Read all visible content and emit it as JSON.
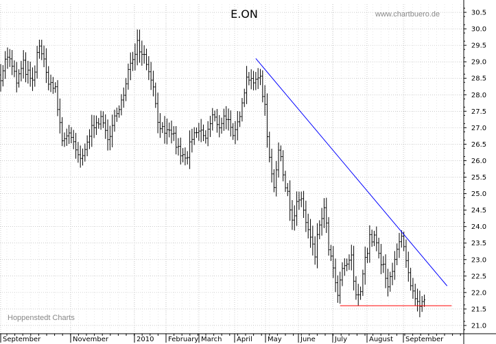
{
  "chart_data": {
    "type": "ohlc-bar",
    "title": "E.ON",
    "watermark": "www.chartbuero.de",
    "source": "Hoppenstedt Charts",
    "ylim": [
      20.75,
      30.75
    ],
    "y_ticks": [
      "30.5",
      "30.0",
      "29.5",
      "29.0",
      "28.5",
      "28.0",
      "27.5",
      "27.0",
      "26.5",
      "26.0",
      "25.5",
      "25.0",
      "24.5",
      "24.0",
      "23.5",
      "23.0",
      "22.5",
      "22.0",
      "21.5",
      "21.0"
    ],
    "x_labels": [
      "September",
      "November",
      "2010",
      "February",
      "March",
      "April",
      "May",
      "June",
      "July",
      "August",
      "September"
    ],
    "grid": true,
    "colors": {
      "price": "#000000",
      "trendline": "#0000ff",
      "support": "#ff0000",
      "grid": "#aaaaaa"
    },
    "anchors": [
      {
        "d": 0,
        "v": 28.6
      },
      {
        "d": 3,
        "v": 29.2
      },
      {
        "d": 7,
        "v": 28.4
      },
      {
        "d": 10,
        "v": 28.9
      },
      {
        "d": 14,
        "v": 28.3
      },
      {
        "d": 17,
        "v": 29.6
      },
      {
        "d": 20,
        "v": 28.6
      },
      {
        "d": 24,
        "v": 28.1
      },
      {
        "d": 27,
        "v": 26.6
      },
      {
        "d": 30,
        "v": 26.9
      },
      {
        "d": 33,
        "v": 26.2
      },
      {
        "d": 36,
        "v": 26.0
      },
      {
        "d": 39,
        "v": 26.8
      },
      {
        "d": 42,
        "v": 27.3
      },
      {
        "d": 45,
        "v": 27.1
      },
      {
        "d": 48,
        "v": 26.6
      },
      {
        "d": 51,
        "v": 27.6
      },
      {
        "d": 54,
        "v": 27.9
      },
      {
        "d": 57,
        "v": 29.0
      },
      {
        "d": 60,
        "v": 29.6
      },
      {
        "d": 63,
        "v": 29.2
      },
      {
        "d": 66,
        "v": 28.6
      },
      {
        "d": 69,
        "v": 27.3
      },
      {
        "d": 72,
        "v": 26.7
      },
      {
        "d": 75,
        "v": 26.9
      },
      {
        "d": 78,
        "v": 26.3
      },
      {
        "d": 81,
        "v": 26.0
      },
      {
        "d": 84,
        "v": 26.6
      },
      {
        "d": 87,
        "v": 26.9
      },
      {
        "d": 90,
        "v": 26.7
      },
      {
        "d": 93,
        "v": 27.3
      },
      {
        "d": 96,
        "v": 27.1
      },
      {
        "d": 99,
        "v": 27.4
      },
      {
        "d": 102,
        "v": 26.6
      },
      {
        "d": 104,
        "v": 27.1
      },
      {
        "d": 106,
        "v": 27.9
      },
      {
        "d": 108,
        "v": 28.5
      },
      {
        "d": 110,
        "v": 28.6
      },
      {
        "d": 112,
        "v": 28.3
      },
      {
        "d": 114,
        "v": 28.6
      },
      {
        "d": 116,
        "v": 27.6
      },
      {
        "d": 118,
        "v": 26.1
      },
      {
        "d": 120,
        "v": 25.3
      },
      {
        "d": 122,
        "v": 26.3
      },
      {
        "d": 124,
        "v": 25.6
      },
      {
        "d": 126,
        "v": 25.1
      },
      {
        "d": 128,
        "v": 24.1
      },
      {
        "d": 130,
        "v": 24.6
      },
      {
        "d": 132,
        "v": 24.9
      },
      {
        "d": 134,
        "v": 24.1
      },
      {
        "d": 136,
        "v": 23.6
      },
      {
        "d": 138,
        "v": 23.1
      },
      {
        "d": 140,
        "v": 24.1
      },
      {
        "d": 142,
        "v": 24.5
      },
      {
        "d": 144,
        "v": 23.4
      },
      {
        "d": 146,
        "v": 22.6
      },
      {
        "d": 148,
        "v": 21.9
      },
      {
        "d": 150,
        "v": 22.6
      },
      {
        "d": 152,
        "v": 22.9
      },
      {
        "d": 154,
        "v": 23.0
      },
      {
        "d": 156,
        "v": 21.8
      },
      {
        "d": 158,
        "v": 22.2
      },
      {
        "d": 160,
        "v": 23.0
      },
      {
        "d": 162,
        "v": 23.6
      },
      {
        "d": 164,
        "v": 23.7
      },
      {
        "d": 166,
        "v": 23.1
      },
      {
        "d": 168,
        "v": 22.7
      },
      {
        "d": 170,
        "v": 22.1
      },
      {
        "d": 172,
        "v": 22.8
      },
      {
        "d": 174,
        "v": 23.4
      },
      {
        "d": 176,
        "v": 23.6
      },
      {
        "d": 178,
        "v": 22.9
      },
      {
        "d": 180,
        "v": 22.1
      },
      {
        "d": 182,
        "v": 21.7
      },
      {
        "d": 184,
        "v": 21.5
      },
      {
        "d": 186,
        "v": 21.7
      }
    ],
    "trendline": {
      "from": {
        "d": 112,
        "v": 29.1
      },
      "to": {
        "d": 196,
        "v": 22.2
      }
    },
    "support": {
      "from": {
        "d": 149,
        "v": 21.6
      },
      "to": {
        "d": 198,
        "v": 21.6
      },
      "value": 21.6
    }
  }
}
